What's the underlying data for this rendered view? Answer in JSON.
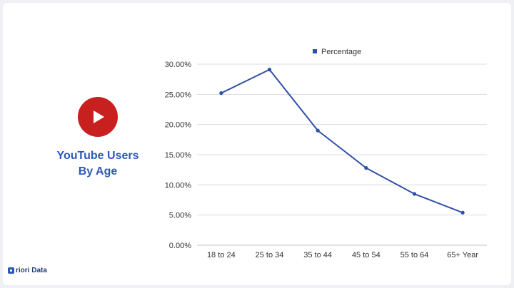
{
  "headline": {
    "line1": "YouTube Users",
    "line2": "By Age"
  },
  "brand": {
    "name": "riori Data"
  },
  "colors": {
    "accent": "#c8201e",
    "line": "#2f4fa8",
    "headline": "#2d58b8"
  },
  "chart_data": {
    "type": "line",
    "categories": [
      "18 to 24",
      "25 to 34",
      "35 to 44",
      "45 to 54",
      "55 to 64",
      "65+ Year"
    ],
    "series": [
      {
        "name": "Percentage",
        "values": [
          25.2,
          29.1,
          19.0,
          12.8,
          8.5,
          5.4
        ]
      }
    ],
    "y_ticks": [
      "0.00%",
      "5.00%",
      "10.00%",
      "15.00%",
      "20.00%",
      "25.00%",
      "30.00%"
    ],
    "ylim": [
      0,
      30
    ],
    "grid": true,
    "legend_position": "top"
  }
}
